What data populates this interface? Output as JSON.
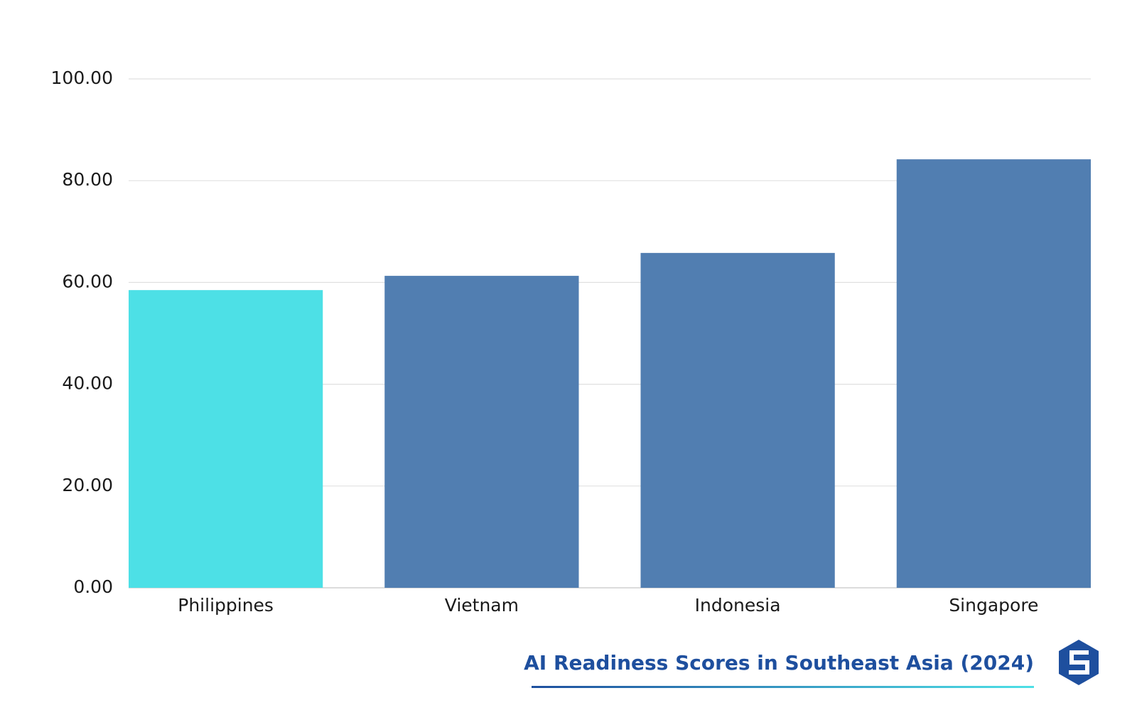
{
  "chart_data": {
    "type": "bar",
    "title": "AI Readiness Scores in Southeast Asia (2024)",
    "categories": [
      "Philippines",
      "Vietnam",
      "Indonesia",
      "Singapore"
    ],
    "values": [
      58.5,
      61.3,
      65.8,
      84.2
    ],
    "colors": [
      "#4de0e6",
      "#517eb1",
      "#517eb1",
      "#517eb1"
    ],
    "ylim": [
      0,
      100
    ],
    "yticks": [
      {
        "value": 0,
        "label": "0.00"
      },
      {
        "value": 20,
        "label": "20.00"
      },
      {
        "value": 40,
        "label": "40.00"
      },
      {
        "value": 60,
        "label": "60.00"
      },
      {
        "value": 80,
        "label": "80.00"
      },
      {
        "value": 100,
        "label": "100.00"
      }
    ],
    "grid": true
  }
}
